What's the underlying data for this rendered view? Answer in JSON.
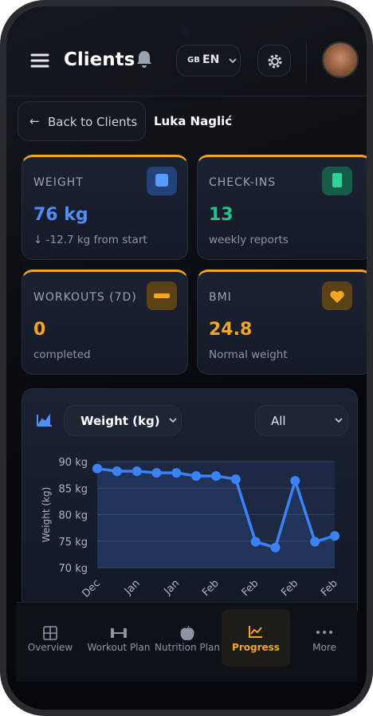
{
  "header": {
    "title": "Clients",
    "flag": "GB",
    "language": "EN"
  },
  "back_button": "Back to Clients",
  "client_name": "Luka Naglić",
  "stats": [
    {
      "label": "WEIGHT",
      "value": "76 kg",
      "note": "-12.7 kg from start"
    },
    {
      "label": "CHECK-INS",
      "value": "13",
      "note": "weekly reports"
    },
    {
      "label": "WORKOUTS (7D)",
      "value": "0",
      "note": "completed"
    },
    {
      "label": "BMI",
      "value": "24.8",
      "note": "Normal weight"
    }
  ],
  "chart_controls": {
    "metric": "Weight (kg)",
    "range": "All"
  },
  "chart_data": {
    "type": "line",
    "y_label": "Weight (kg)",
    "color": "#3b82f6",
    "categories": [
      "Dec",
      null,
      "Jan",
      null,
      "Jan",
      null,
      "Feb",
      null,
      "Feb",
      null,
      "Feb",
      null,
      "Feb"
    ],
    "values": [
      88.7,
      88.2,
      88.2,
      87.9,
      87.9,
      87.3,
      87.3,
      86.7,
      74.9,
      73.8,
      86.4,
      74.9,
      76
    ],
    "ylim": [
      70,
      90
    ],
    "yticks": [
      {
        "value": 70,
        "label": "70 kg"
      },
      {
        "value": 75,
        "label": "75 kg"
      },
      {
        "value": 80,
        "label": "80 kg"
      },
      {
        "value": 85,
        "label": "85 kg"
      },
      {
        "value": 90,
        "label": "90 kg"
      }
    ],
    "grid": true
  },
  "nav": {
    "items": [
      "Overview",
      "Workout Plan",
      "Nutrition Plan",
      "Progress",
      "More"
    ],
    "active": 3
  }
}
